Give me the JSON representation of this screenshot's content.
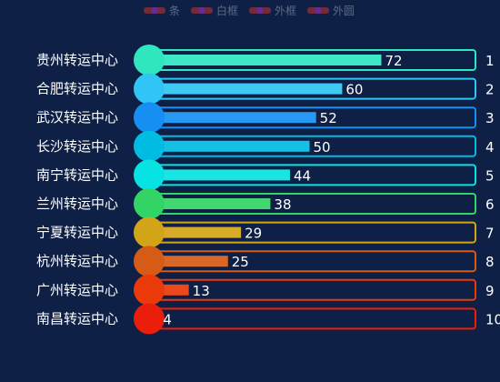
{
  "chart_data": {
    "type": "bar",
    "orientation": "horizontal",
    "title": "",
    "xlabel": "",
    "ylabel": "",
    "xlim": [
      0,
      100
    ],
    "legend": {
      "placement": "top-center",
      "entries": [
        {
          "label": "条"
        },
        {
          "label": "白框"
        },
        {
          "label": "外框"
        },
        {
          "label": "外圆"
        }
      ]
    },
    "categories": [
      "贵州转运中心",
      "合肥转运中心",
      "武汉转运中心",
      "长沙转运中心",
      "南宁转运中心",
      "兰州转运中心",
      "宁夏转运中心",
      "杭州转运中心",
      "广州转运中心",
      "南昌转运中心"
    ],
    "values": [
      72,
      60,
      52,
      50,
      44,
      38,
      29,
      25,
      13,
      4
    ],
    "ranks": [
      "1",
      "2",
      "3",
      "4",
      "5",
      "6",
      "7",
      "8",
      "9",
      "10"
    ],
    "colors": [
      "#2fe6bf",
      "#2fc6f6",
      "#1590f2",
      "#00bce3",
      "#07e2e2",
      "#33d466",
      "#d4a418",
      "#d65b16",
      "#ea3a0a",
      "#ea1e0a"
    ],
    "grid": false
  }
}
